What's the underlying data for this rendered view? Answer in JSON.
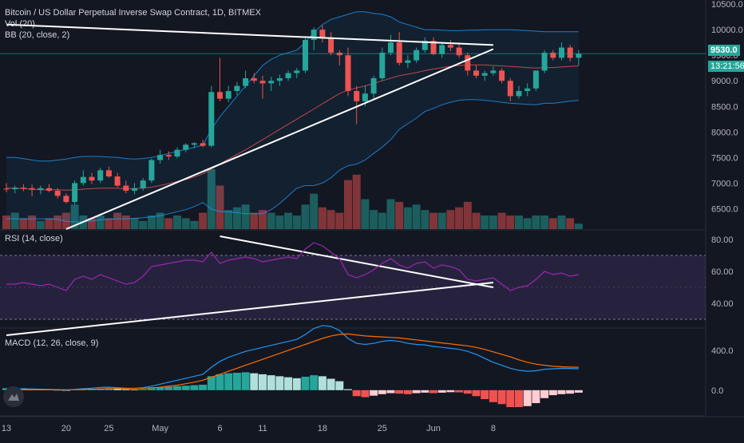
{
  "legend": {
    "title": "Bitcoin / US Dollar Perpetual Inverse Swap Contract, 1D, BITMEX",
    "vol": "Vol (20)",
    "bb": "BB (20, close, 2)",
    "rsi": "RSI (14, close)",
    "macd": "MACD (12, 26, close, 9)"
  },
  "price_tag": {
    "value": "9530.0",
    "countdown": "13:21:56"
  },
  "colors": {
    "background": "#131722",
    "up": "#26a69a",
    "down": "#ef5350",
    "bb_band": "#2196f3",
    "bb_basis": "#ef5350",
    "rsi_line": "#9c27b0",
    "macd_line": "#2196f3",
    "signal_line": "#ff6d00",
    "trendline": "#ffffff",
    "axis_text": "#b2b5be"
  },
  "chart_data": [
    {
      "type": "candlestick",
      "title": "Bitcoin / US Dollar Perpetual Inverse Swap Contract, 1D, BITMEX",
      "x_tick_labels": [
        "13",
        "20",
        "25",
        "May",
        "6",
        "11",
        "18",
        "25",
        "Jun",
        "8"
      ],
      "y_tick_labels": [
        "6500.0",
        "7000.0",
        "7500.0",
        "8000.0",
        "8500.0",
        "9000.0",
        "9500.0",
        "10000.0",
        "10500.0"
      ],
      "ylim": [
        6100,
        10580
      ],
      "last_price": 9530.0,
      "candles": [
        [
          6890,
          7000,
          6820,
          6880
        ],
        [
          6880,
          6950,
          6800,
          6910
        ],
        [
          6910,
          6980,
          6840,
          6900
        ],
        [
          6900,
          6970,
          6740,
          6870
        ],
        [
          6870,
          6950,
          6780,
          6900
        ],
        [
          6900,
          6980,
          6820,
          6850
        ],
        [
          6850,
          6900,
          6700,
          6750
        ],
        [
          6750,
          6800,
          6600,
          6630
        ],
        [
          6630,
          7050,
          6580,
          7000
        ],
        [
          7000,
          7250,
          6950,
          7120
        ],
        [
          7120,
          7200,
          6980,
          7050
        ],
        [
          7050,
          7300,
          7000,
          7250
        ],
        [
          7250,
          7320,
          7100,
          7130
        ],
        [
          7130,
          7200,
          6920,
          6950
        ],
        [
          6950,
          7050,
          6800,
          6850
        ],
        [
          6850,
          7000,
          6780,
          6900
        ],
        [
          6900,
          7100,
          6850,
          7050
        ],
        [
          7050,
          7480,
          7000,
          7450
        ],
        [
          7450,
          7650,
          7380,
          7550
        ],
        [
          7550,
          7620,
          7450,
          7520
        ],
        [
          7520,
          7700,
          7480,
          7650
        ],
        [
          7650,
          7780,
          7600,
          7750
        ],
        [
          7750,
          7800,
          7680,
          7780
        ],
        [
          7780,
          7850,
          7700,
          7730
        ],
        [
          7730,
          8900,
          7700,
          8780
        ],
        [
          8780,
          9450,
          8600,
          8650
        ],
        [
          8650,
          8900,
          8580,
          8800
        ],
        [
          8800,
          8980,
          8720,
          8900
        ],
        [
          8900,
          9200,
          8850,
          9050
        ],
        [
          9050,
          9150,
          8950,
          9000
        ],
        [
          9000,
          9100,
          8650,
          8950
        ],
        [
          8950,
          9080,
          8800,
          9000
        ],
        [
          9000,
          9120,
          8900,
          9050
        ],
        [
          9050,
          9200,
          9000,
          9150
        ],
        [
          9150,
          9250,
          9050,
          9200
        ],
        [
          9200,
          9850,
          9150,
          9800
        ],
        [
          9800,
          10050,
          9600,
          10000
        ],
        [
          10000,
          10080,
          9750,
          9850
        ],
        [
          9850,
          9950,
          9500,
          9550
        ],
        [
          9550,
          9600,
          9300,
          9500
        ],
        [
          9500,
          9650,
          8700,
          8800
        ],
        [
          8800,
          8900,
          8150,
          8600
        ],
        [
          8600,
          8900,
          8500,
          8750
        ],
        [
          8750,
          9100,
          8650,
          9050
        ],
        [
          9050,
          9650,
          9000,
          9550
        ],
        [
          9550,
          9900,
          9500,
          9750
        ],
        [
          9750,
          9950,
          9300,
          9350
        ],
        [
          9350,
          9500,
          9250,
          9400
        ],
        [
          9400,
          9650,
          9350,
          9600
        ],
        [
          9600,
          9850,
          9550,
          9780
        ],
        [
          9780,
          9850,
          9500,
          9520
        ],
        [
          9520,
          9750,
          9450,
          9700
        ],
        [
          9700,
          9800,
          9580,
          9650
        ],
        [
          9650,
          9750,
          9450,
          9500
        ],
        [
          9500,
          9550,
          9100,
          9200
        ],
        [
          9200,
          9300,
          9050,
          9100
        ],
        [
          9100,
          9200,
          9000,
          9150
        ],
        [
          9150,
          9280,
          9100,
          9200
        ],
        [
          9200,
          9250,
          8950,
          9000
        ],
        [
          9000,
          9050,
          8600,
          8700
        ],
        [
          8700,
          8900,
          8650,
          8800
        ],
        [
          8800,
          8950,
          8700,
          8850
        ],
        [
          8850,
          9200,
          8800,
          9200
        ],
        [
          9200,
          9600,
          9150,
          9550
        ],
        [
          9550,
          9600,
          9400,
          9450
        ],
        [
          9450,
          9750,
          9400,
          9650
        ],
        [
          9650,
          9700,
          9380,
          9450
        ],
        [
          9450,
          9600,
          9300,
          9530
        ]
      ],
      "volume": [
        5,
        6,
        4,
        5,
        3,
        4,
        5,
        6,
        9,
        5,
        4,
        5,
        4,
        6,
        5,
        4,
        3,
        5,
        6,
        4,
        5,
        4,
        3,
        6,
        22,
        16,
        7,
        8,
        9,
        6,
        7,
        6,
        5,
        6,
        5,
        9,
        13,
        8,
        7,
        6,
        18,
        20,
        11,
        7,
        6,
        11,
        10,
        8,
        9,
        7,
        6,
        6,
        7,
        8,
        10,
        6,
        5,
        5,
        6,
        5,
        5,
        4,
        5,
        5,
        4,
        5,
        4,
        2
      ],
      "bollinger": {
        "upper": [
          7500,
          7500,
          7480,
          7450,
          7430,
          7430,
          7450,
          7470,
          7500,
          7520,
          7520,
          7520,
          7510,
          7500,
          7480,
          7470,
          7480,
          7500,
          7540,
          7580,
          7620,
          7660,
          7700,
          7740,
          8050,
          8300,
          8500,
          8700,
          8900,
          9100,
          9300,
          9420,
          9500,
          9550,
          9600,
          9750,
          9950,
          10100,
          10200,
          10250,
          10300,
          10350,
          10350,
          10320,
          10300,
          10250,
          10150,
          10100,
          10050,
          10000,
          10000,
          9990,
          9980,
          9980,
          9990,
          9990,
          10000,
          10000,
          10000,
          10000,
          9990,
          9980,
          9970,
          9960,
          9960,
          9960,
          9960,
          9960
        ],
        "basis": [
          6900,
          6900,
          6890,
          6880,
          6870,
          6870,
          6870,
          6860,
          6870,
          6880,
          6890,
          6900,
          6900,
          6900,
          6890,
          6890,
          6900,
          6920,
          6950,
          6990,
          7030,
          7070,
          7120,
          7180,
          7270,
          7370,
          7470,
          7560,
          7650,
          7750,
          7850,
          7950,
          8050,
          8150,
          8250,
          8350,
          8450,
          8550,
          8650,
          8750,
          8820,
          8860,
          8900,
          8950,
          9000,
          9050,
          9100,
          9130,
          9160,
          9200,
          9230,
          9260,
          9280,
          9300,
          9310,
          9310,
          9310,
          9300,
          9290,
          9280,
          9270,
          9260,
          9250,
          9260,
          9260,
          9270,
          9280,
          9290
        ],
        "lower": [
          6300,
          6300,
          6300,
          6300,
          6300,
          6300,
          6290,
          6250,
          6240,
          6240,
          6260,
          6280,
          6290,
          6300,
          6300,
          6310,
          6320,
          6340,
          6360,
          6400,
          6440,
          6480,
          6540,
          6620,
          6490,
          6440,
          6440,
          6420,
          6400,
          6400,
          6400,
          6480,
          6600,
          6750,
          6900,
          6950,
          6950,
          7000,
          7100,
          7250,
          7340,
          7370,
          7450,
          7580,
          7700,
          7850,
          8050,
          8160,
          8270,
          8400,
          8460,
          8530,
          8580,
          8620,
          8630,
          8630,
          8620,
          8600,
          8580,
          8560,
          8550,
          8540,
          8530,
          8560,
          8560,
          8580,
          8600,
          8620
        ]
      },
      "trendlines": [
        {
          "from": [
            "13",
            10100
          ],
          "to": [
            "8",
            9700
          ]
        },
        {
          "from": [
            "20",
            6100
          ],
          "to": [
            "8",
            9620
          ]
        }
      ]
    },
    {
      "type": "line",
      "title": "RSI (14, close)",
      "y_tick_labels": [
        "40.00",
        "60.00",
        "80.00"
      ],
      "ylim": [
        25,
        85
      ],
      "band": [
        30,
        70
      ],
      "values": [
        52,
        52,
        53,
        52,
        51,
        52,
        50,
        48,
        55,
        57,
        55,
        58,
        56,
        54,
        52,
        53,
        57,
        63,
        64,
        65,
        66,
        67,
        67,
        66,
        72,
        65,
        67,
        68,
        69,
        68,
        66,
        67,
        68,
        69,
        68,
        74,
        78,
        76,
        72,
        68,
        58,
        56,
        58,
        61,
        65,
        68,
        64,
        62,
        65,
        66,
        62,
        64,
        63,
        61,
        55,
        54,
        55,
        56,
        52,
        48,
        50,
        51,
        55,
        60,
        58,
        59,
        57,
        58
      ],
      "trendlines": [
        {
          "from": [
            "6",
            82
          ],
          "to": [
            "8",
            50
          ]
        },
        {
          "from": [
            "13",
            20
          ],
          "to": [
            "8",
            53
          ]
        }
      ]
    },
    {
      "type": "bar",
      "title": "MACD (12, 26, close, 9)",
      "y_tick_labels": [
        "0.0",
        "400.0"
      ],
      "ylim": [
        -250,
        600
      ],
      "histogram": [
        20,
        20,
        18,
        15,
        10,
        8,
        5,
        2,
        8,
        12,
        14,
        18,
        20,
        15,
        10,
        8,
        12,
        20,
        28,
        35,
        40,
        45,
        50,
        55,
        140,
        160,
        170,
        175,
        180,
        170,
        160,
        150,
        140,
        130,
        120,
        135,
        150,
        140,
        115,
        90,
        10,
        -60,
        -70,
        -55,
        -40,
        -30,
        -35,
        -40,
        -30,
        -25,
        -30,
        -25,
        -20,
        -22,
        -35,
        -60,
        -90,
        -120,
        -140,
        -170,
        -170,
        -160,
        -130,
        -80,
        -50,
        -40,
        -35,
        -25
      ],
      "macd": [
        5,
        10,
        12,
        12,
        10,
        8,
        5,
        0,
        8,
        15,
        20,
        28,
        30,
        25,
        20,
        18,
        25,
        40,
        60,
        80,
        100,
        120,
        140,
        160,
        230,
        290,
        330,
        360,
        390,
        410,
        430,
        450,
        470,
        490,
        510,
        560,
        620,
        650,
        640,
        600,
        520,
        470,
        460,
        470,
        490,
        500,
        490,
        470,
        460,
        455,
        440,
        430,
        420,
        410,
        390,
        360,
        320,
        280,
        250,
        220,
        200,
        190,
        195,
        210,
        215,
        220,
        218,
        215
      ],
      "signal": [
        -5,
        0,
        3,
        5,
        6,
        6,
        5,
        4,
        5,
        7,
        9,
        12,
        15,
        17,
        18,
        19,
        20,
        24,
        30,
        40,
        50,
        65,
        80,
        100,
        130,
        160,
        190,
        220,
        250,
        280,
        310,
        340,
        370,
        400,
        430,
        460,
        490,
        520,
        545,
        560,
        565,
        555,
        545,
        540,
        535,
        530,
        525,
        515,
        505,
        495,
        485,
        475,
        465,
        455,
        445,
        430,
        410,
        385,
        360,
        335,
        305,
        280,
        262,
        250,
        240,
        235,
        232,
        230
      ]
    }
  ]
}
